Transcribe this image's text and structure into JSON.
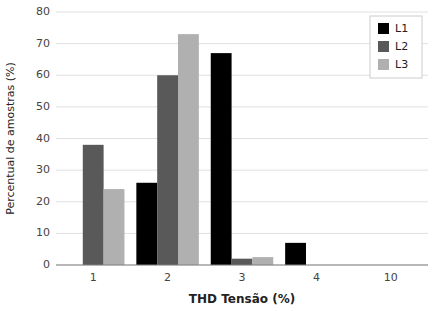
{
  "chart_data": {
    "type": "bar",
    "categories": [
      "1",
      "2",
      "3",
      "4",
      "10"
    ],
    "series": [
      {
        "name": "L1",
        "color": "#000000",
        "values": [
          0,
          26,
          67,
          7,
          0
        ]
      },
      {
        "name": "L2",
        "color": "#595959",
        "values": [
          38,
          60,
          2,
          0,
          0
        ]
      },
      {
        "name": "L3",
        "color": "#b0b0b0",
        "values": [
          24,
          73,
          2.5,
          0,
          0
        ]
      }
    ],
    "xlabel": "THD Tensão (%)",
    "ylabel": "Percentual de amostras (%)",
    "ylim": [
      0,
      80
    ],
    "yticks": [
      0,
      10,
      20,
      30,
      40,
      50,
      60,
      70,
      80
    ],
    "grid": true,
    "legend": "upper right"
  }
}
